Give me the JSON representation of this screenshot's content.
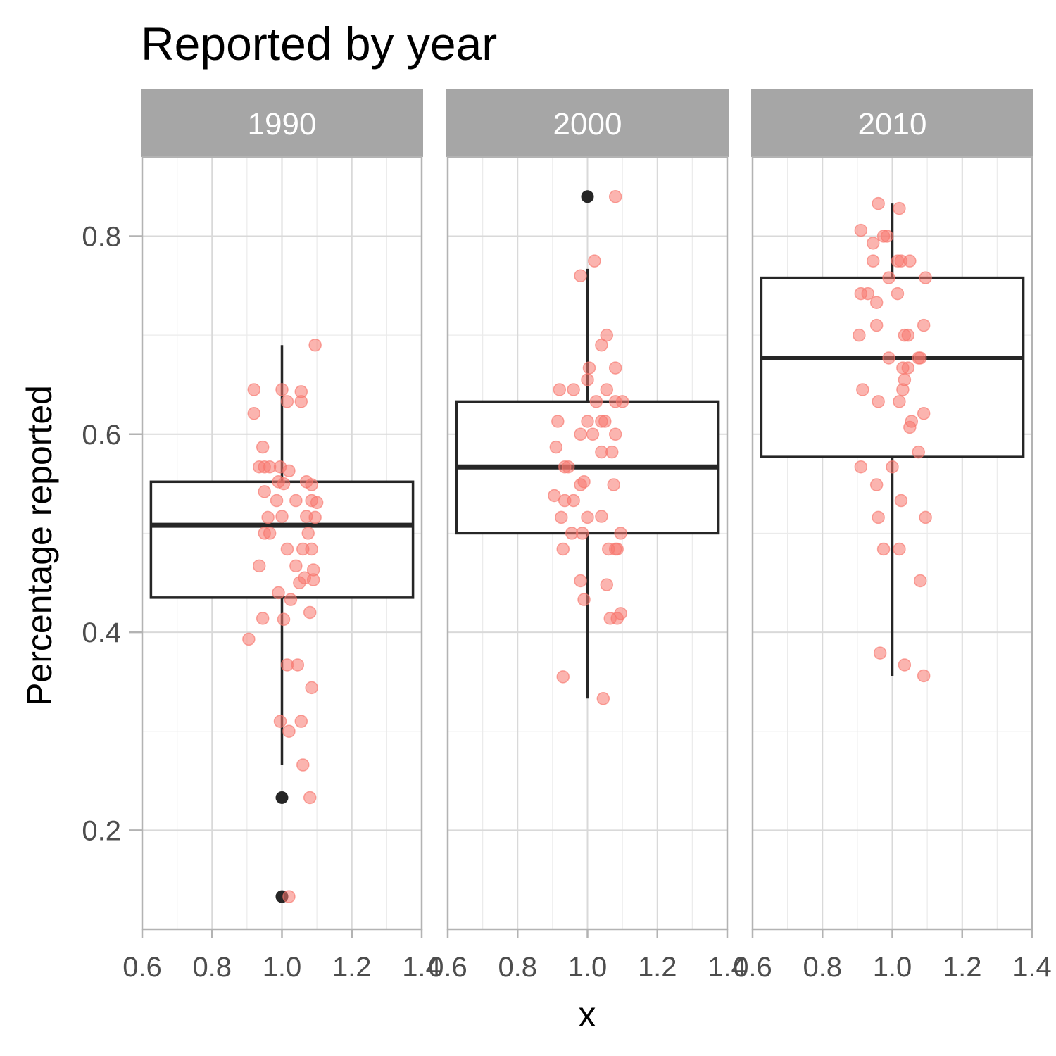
{
  "chart_data": {
    "type": "boxplot",
    "title": "Reported by year",
    "xlabel": "x",
    "ylabel": "Percentage reported",
    "x_ticks": [
      "0.6",
      "0.8",
      "1.0",
      "1.2",
      "1.4"
    ],
    "y_ticks": [
      "0.2",
      "0.4",
      "0.6",
      "0.8"
    ],
    "xlim": [
      0.6,
      1.4
    ],
    "ylim": [
      0.1,
      0.88
    ],
    "grid": true,
    "colors": {
      "points": "#F8766D",
      "box": "#262626",
      "strip_bg": "#A6A6A6",
      "grid": "#d9d9d9",
      "panel_border": "#b3b3b3"
    },
    "panels": [
      {
        "label": "1990",
        "box": {
          "min": 0.266,
          "q1": 0.435,
          "median": 0.508,
          "q3": 0.552,
          "max": 0.69
        },
        "outliers": [
          0.233,
          0.133
        ],
        "points": [
          [
            0.92,
            0.645
          ],
          [
            1.0,
            0.645
          ],
          [
            1.055,
            0.643
          ],
          [
            1.055,
            0.633
          ],
          [
            1.015,
            0.633
          ],
          [
            1.095,
            0.69
          ],
          [
            0.92,
            0.621
          ],
          [
            0.945,
            0.587
          ],
          [
            0.935,
            0.567
          ],
          [
            0.95,
            0.567
          ],
          [
            0.965,
            0.567
          ],
          [
            0.995,
            0.567
          ],
          [
            1.02,
            0.563
          ],
          [
            0.99,
            0.552
          ],
          [
            1.005,
            0.55
          ],
          [
            1.07,
            0.552
          ],
          [
            1.085,
            0.549
          ],
          [
            0.95,
            0.542
          ],
          [
            0.985,
            0.533
          ],
          [
            1.04,
            0.533
          ],
          [
            1.085,
            0.533
          ],
          [
            1.1,
            0.531
          ],
          [
            0.96,
            0.516
          ],
          [
            1.0,
            0.517
          ],
          [
            1.07,
            0.517
          ],
          [
            1.095,
            0.516
          ],
          [
            0.95,
            0.5
          ],
          [
            0.965,
            0.5
          ],
          [
            1.075,
            0.5
          ],
          [
            1.015,
            0.484
          ],
          [
            1.06,
            0.484
          ],
          [
            1.085,
            0.484
          ],
          [
            0.935,
            0.467
          ],
          [
            1.04,
            0.467
          ],
          [
            1.09,
            0.463
          ],
          [
            1.065,
            0.455
          ],
          [
            1.09,
            0.453
          ],
          [
            1.05,
            0.45
          ],
          [
            0.99,
            0.44
          ],
          [
            1.025,
            0.433
          ],
          [
            1.08,
            0.42
          ],
          [
            0.945,
            0.414
          ],
          [
            1.005,
            0.413
          ],
          [
            0.905,
            0.393
          ],
          [
            1.015,
            0.367
          ],
          [
            1.045,
            0.367
          ],
          [
            1.085,
            0.344
          ],
          [
            0.995,
            0.31
          ],
          [
            1.055,
            0.31
          ],
          [
            1.02,
            0.3
          ],
          [
            1.06,
            0.266
          ],
          [
            1.08,
            0.233
          ],
          [
            1.02,
            0.133
          ]
        ]
      },
      {
        "label": "2000",
        "box": {
          "min": 0.333,
          "q1": 0.5,
          "median": 0.567,
          "q3": 0.633,
          "max": 0.767
        },
        "outliers": [
          0.84
        ],
        "points": [
          [
            1.08,
            0.84
          ],
          [
            1.02,
            0.775
          ],
          [
            0.98,
            0.76
          ],
          [
            1.055,
            0.7
          ],
          [
            1.04,
            0.69
          ],
          [
            1.005,
            0.667
          ],
          [
            1.08,
            0.667
          ],
          [
            1.0,
            0.655
          ],
          [
            0.92,
            0.645
          ],
          [
            0.96,
            0.645
          ],
          [
            1.055,
            0.645
          ],
          [
            1.025,
            0.633
          ],
          [
            1.08,
            0.633
          ],
          [
            1.1,
            0.633
          ],
          [
            0.915,
            0.613
          ],
          [
            1.0,
            0.613
          ],
          [
            1.04,
            0.613
          ],
          [
            1.05,
            0.613
          ],
          [
            0.98,
            0.6
          ],
          [
            1.015,
            0.6
          ],
          [
            1.08,
            0.6
          ],
          [
            0.91,
            0.587
          ],
          [
            1.04,
            0.582
          ],
          [
            1.07,
            0.582
          ],
          [
            0.935,
            0.567
          ],
          [
            0.945,
            0.567
          ],
          [
            0.99,
            0.552
          ],
          [
            0.98,
            0.549
          ],
          [
            1.075,
            0.549
          ],
          [
            0.905,
            0.538
          ],
          [
            0.935,
            0.533
          ],
          [
            0.96,
            0.533
          ],
          [
            0.925,
            0.516
          ],
          [
            1.0,
            0.516
          ],
          [
            1.04,
            0.517
          ],
          [
            0.955,
            0.5
          ],
          [
            0.985,
            0.5
          ],
          [
            1.095,
            0.5
          ],
          [
            0.93,
            0.484
          ],
          [
            1.06,
            0.484
          ],
          [
            1.08,
            0.484
          ],
          [
            1.085,
            0.484
          ],
          [
            0.98,
            0.452
          ],
          [
            1.055,
            0.448
          ],
          [
            0.99,
            0.433
          ],
          [
            1.065,
            0.414
          ],
          [
            1.085,
            0.414
          ],
          [
            1.095,
            0.419
          ],
          [
            0.93,
            0.355
          ],
          [
            1.045,
            0.333
          ]
        ]
      },
      {
        "label": "2010",
        "box": {
          "min": 0.356,
          "q1": 0.577,
          "median": 0.677,
          "q3": 0.758,
          "max": 0.833
        },
        "outliers": [],
        "points": [
          [
            0.96,
            0.833
          ],
          [
            1.02,
            0.828
          ],
          [
            0.91,
            0.806
          ],
          [
            0.975,
            0.8
          ],
          [
            0.985,
            0.8
          ],
          [
            0.945,
            0.793
          ],
          [
            0.945,
            0.775
          ],
          [
            1.015,
            0.775
          ],
          [
            1.025,
            0.775
          ],
          [
            1.05,
            0.775
          ],
          [
            0.99,
            0.758
          ],
          [
            1.095,
            0.758
          ],
          [
            0.91,
            0.742
          ],
          [
            0.93,
            0.742
          ],
          [
            1.015,
            0.742
          ],
          [
            0.955,
            0.733
          ],
          [
            0.955,
            0.71
          ],
          [
            1.09,
            0.71
          ],
          [
            0.905,
            0.7
          ],
          [
            1.035,
            0.7
          ],
          [
            1.045,
            0.7
          ],
          [
            0.99,
            0.677
          ],
          [
            1.075,
            0.677
          ],
          [
            1.08,
            0.677
          ],
          [
            1.03,
            0.667
          ],
          [
            1.045,
            0.667
          ],
          [
            1.035,
            0.655
          ],
          [
            0.915,
            0.645
          ],
          [
            1.03,
            0.645
          ],
          [
            0.96,
            0.633
          ],
          [
            1.02,
            0.633
          ],
          [
            1.09,
            0.621
          ],
          [
            1.055,
            0.613
          ],
          [
            1.05,
            0.607
          ],
          [
            1.075,
            0.582
          ],
          [
            0.91,
            0.567
          ],
          [
            1.0,
            0.567
          ],
          [
            0.955,
            0.549
          ],
          [
            1.025,
            0.533
          ],
          [
            0.96,
            0.516
          ],
          [
            1.095,
            0.516
          ],
          [
            0.975,
            0.484
          ],
          [
            1.02,
            0.484
          ],
          [
            1.08,
            0.452
          ],
          [
            0.965,
            0.379
          ],
          [
            1.035,
            0.367
          ],
          [
            1.09,
            0.356
          ]
        ]
      }
    ]
  }
}
